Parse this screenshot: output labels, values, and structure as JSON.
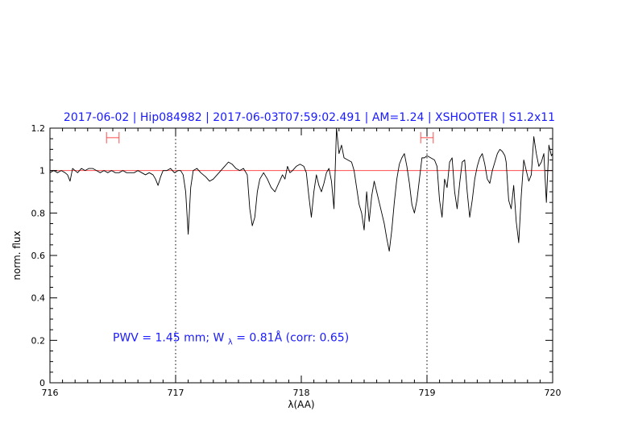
{
  "chart_data": {
    "type": "line",
    "title": "2017-06-02 | Hip084982 | 2017-06-03T07:59:02.491 | AM=1.24 | XSHOOTER | S1.2x11",
    "xlabel": "λ(AA)",
    "ylabel": "norm. flux",
    "xlim": [
      716,
      720
    ],
    "ylim": [
      0,
      1.2
    ],
    "x_ticks": [
      716,
      717,
      718,
      719,
      720
    ],
    "x_tick_labels": [
      "716",
      "717",
      "718",
      "719",
      "720"
    ],
    "y_ticks": [
      0,
      0.2,
      0.4,
      0.6,
      0.8,
      1,
      1.2
    ],
    "y_tick_labels": [
      "0",
      "0.2",
      "0.4",
      "0.6",
      "0.8",
      "1",
      "1.2"
    ],
    "grid": false,
    "reference_line": {
      "y": 1.0,
      "color": "#ff4d4d"
    },
    "vertical_markers": [
      717.0,
      719.0
    ],
    "intervals": [
      {
        "x0": 716.45,
        "x1": 716.55,
        "y": 1.155,
        "color": "#ff4d4d"
      },
      {
        "x0": 718.95,
        "x1": 719.05,
        "y": 1.155,
        "color": "#ff4d4d"
      }
    ],
    "annotation": {
      "prefix": "PWV = 1.45 mm; W",
      "subscript": "λ",
      "suffix": " = 0.81Å (corr: 0.65)",
      "x": 716.5,
      "y": 0.195,
      "color": "#1a1aff"
    },
    "title_color": "#1a1aff",
    "series": [
      {
        "color": "#000000",
        "points": [
          [
            716.0,
            0.99
          ],
          [
            716.03,
            1.0
          ],
          [
            716.06,
            0.99
          ],
          [
            716.09,
            1.0
          ],
          [
            716.12,
            0.99
          ],
          [
            716.14,
            0.98
          ],
          [
            716.16,
            0.95
          ],
          [
            716.18,
            1.01
          ],
          [
            716.2,
            1.0
          ],
          [
            716.22,
            0.99
          ],
          [
            716.25,
            1.01
          ],
          [
            716.28,
            1.0
          ],
          [
            716.31,
            1.01
          ],
          [
            716.34,
            1.01
          ],
          [
            716.37,
            1.0
          ],
          [
            716.4,
            0.99
          ],
          [
            716.43,
            1.0
          ],
          [
            716.46,
            0.99
          ],
          [
            716.49,
            1.0
          ],
          [
            716.52,
            0.99
          ],
          [
            716.55,
            0.99
          ],
          [
            716.58,
            1.0
          ],
          [
            716.61,
            0.99
          ],
          [
            716.64,
            0.99
          ],
          [
            716.67,
            0.99
          ],
          [
            716.7,
            1.0
          ],
          [
            716.73,
            0.99
          ],
          [
            716.76,
            0.98
          ],
          [
            716.79,
            0.99
          ],
          [
            716.82,
            0.98
          ],
          [
            716.84,
            0.96
          ],
          [
            716.86,
            0.93
          ],
          [
            716.88,
            0.97
          ],
          [
            716.9,
            1.0
          ],
          [
            716.93,
            1.0
          ],
          [
            716.96,
            1.01
          ],
          [
            716.99,
            0.99
          ],
          [
            717.02,
            1.0
          ],
          [
            717.04,
            1.0
          ],
          [
            717.06,
            0.98
          ],
          [
            717.08,
            0.9
          ],
          [
            717.1,
            0.7
          ],
          [
            717.12,
            0.92
          ],
          [
            717.14,
            1.0
          ],
          [
            717.17,
            1.01
          ],
          [
            717.2,
            0.99
          ],
          [
            717.22,
            0.98
          ],
          [
            717.24,
            0.97
          ],
          [
            717.27,
            0.95
          ],
          [
            717.3,
            0.96
          ],
          [
            717.33,
            0.98
          ],
          [
            717.36,
            1.0
          ],
          [
            717.39,
            1.02
          ],
          [
            717.42,
            1.04
          ],
          [
            717.45,
            1.03
          ],
          [
            717.48,
            1.01
          ],
          [
            717.51,
            1.0
          ],
          [
            717.54,
            1.01
          ],
          [
            717.57,
            0.98
          ],
          [
            717.59,
            0.82
          ],
          [
            717.61,
            0.74
          ],
          [
            717.63,
            0.78
          ],
          [
            717.65,
            0.9
          ],
          [
            717.67,
            0.96
          ],
          [
            717.7,
            0.99
          ],
          [
            717.73,
            0.96
          ],
          [
            717.76,
            0.92
          ],
          [
            717.79,
            0.9
          ],
          [
            717.82,
            0.94
          ],
          [
            717.85,
            0.98
          ],
          [
            717.87,
            0.96
          ],
          [
            717.89,
            1.02
          ],
          [
            717.91,
            0.99
          ],
          [
            717.93,
            1.0
          ],
          [
            717.96,
            1.02
          ],
          [
            717.99,
            1.03
          ],
          [
            718.02,
            1.02
          ],
          [
            718.04,
            0.99
          ],
          [
            718.06,
            0.88
          ],
          [
            718.08,
            0.78
          ],
          [
            718.1,
            0.9
          ],
          [
            718.12,
            0.98
          ],
          [
            718.14,
            0.93
          ],
          [
            718.16,
            0.9
          ],
          [
            718.18,
            0.94
          ],
          [
            718.2,
            0.99
          ],
          [
            718.22,
            1.01
          ],
          [
            718.24,
            0.95
          ],
          [
            718.26,
            0.82
          ],
          [
            718.28,
            1.2
          ],
          [
            718.3,
            1.08
          ],
          [
            718.32,
            1.12
          ],
          [
            718.34,
            1.06
          ],
          [
            718.37,
            1.05
          ],
          [
            718.4,
            1.04
          ],
          [
            718.42,
            1.0
          ],
          [
            718.44,
            0.92
          ],
          [
            718.46,
            0.84
          ],
          [
            718.48,
            0.8
          ],
          [
            718.5,
            0.72
          ],
          [
            718.52,
            0.9
          ],
          [
            718.54,
            0.76
          ],
          [
            718.56,
            0.88
          ],
          [
            718.58,
            0.95
          ],
          [
            718.6,
            0.9
          ],
          [
            718.62,
            0.85
          ],
          [
            718.64,
            0.8
          ],
          [
            718.66,
            0.75
          ],
          [
            718.68,
            0.68
          ],
          [
            718.7,
            0.62
          ],
          [
            718.72,
            0.72
          ],
          [
            718.74,
            0.85
          ],
          [
            718.76,
            0.96
          ],
          [
            718.78,
            1.03
          ],
          [
            718.8,
            1.06
          ],
          [
            718.82,
            1.08
          ],
          [
            718.84,
            1.02
          ],
          [
            718.86,
            0.94
          ],
          [
            718.88,
            0.84
          ],
          [
            718.9,
            0.8
          ],
          [
            718.92,
            0.86
          ],
          [
            718.94,
            0.96
          ],
          [
            718.96,
            1.06
          ],
          [
            718.98,
            1.06
          ],
          [
            719.0,
            1.07
          ],
          [
            719.03,
            1.06
          ],
          [
            719.06,
            1.05
          ],
          [
            719.08,
            1.02
          ],
          [
            719.1,
            0.86
          ],
          [
            719.12,
            0.78
          ],
          [
            719.14,
            0.96
          ],
          [
            719.16,
            0.92
          ],
          [
            719.18,
            1.04
          ],
          [
            719.2,
            1.06
          ],
          [
            719.22,
            0.9
          ],
          [
            719.24,
            0.82
          ],
          [
            719.26,
            0.94
          ],
          [
            719.28,
            1.04
          ],
          [
            719.3,
            1.05
          ],
          [
            719.32,
            0.9
          ],
          [
            719.34,
            0.78
          ],
          [
            719.36,
            0.86
          ],
          [
            719.38,
            0.96
          ],
          [
            719.4,
            1.02
          ],
          [
            719.42,
            1.06
          ],
          [
            719.44,
            1.08
          ],
          [
            719.46,
            1.03
          ],
          [
            719.48,
            0.96
          ],
          [
            719.5,
            0.94
          ],
          [
            719.52,
            1.0
          ],
          [
            719.54,
            1.04
          ],
          [
            719.56,
            1.08
          ],
          [
            719.58,
            1.1
          ],
          [
            719.6,
            1.09
          ],
          [
            719.62,
            1.07
          ],
          [
            719.63,
            1.04
          ],
          [
            719.65,
            0.86
          ],
          [
            719.67,
            0.82
          ],
          [
            719.69,
            0.93
          ],
          [
            719.71,
            0.76
          ],
          [
            719.73,
            0.66
          ],
          [
            719.75,
            0.88
          ],
          [
            719.77,
            1.05
          ],
          [
            719.79,
            1.0
          ],
          [
            719.81,
            0.95
          ],
          [
            719.83,
            0.98
          ],
          [
            719.85,
            1.16
          ],
          [
            719.87,
            1.08
          ],
          [
            719.89,
            1.02
          ],
          [
            719.91,
            1.04
          ],
          [
            719.93,
            1.08
          ],
          [
            719.95,
            0.85
          ],
          [
            719.97,
            1.12
          ],
          [
            719.99,
            1.07
          ],
          [
            720.0,
            1.08
          ]
        ]
      }
    ]
  }
}
